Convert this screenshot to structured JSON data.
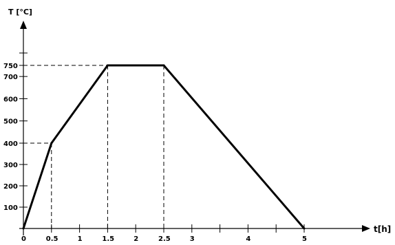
{
  "chart_data": {
    "type": "line",
    "title": "",
    "ylabel": "T [°C]",
    "xlabel": "t[h]",
    "xlim": [
      0,
      6.2
    ],
    "ylim": [
      0,
      800
    ],
    "grid": false,
    "x_ticks": [
      "0",
      "0.5",
      "1",
      "1.5",
      "2",
      "2.5",
      "3",
      "4",
      "5"
    ],
    "y_ticks": [
      "100",
      "200",
      "300",
      "400",
      "500",
      "600",
      "700",
      "750"
    ],
    "series": [
      {
        "name": "",
        "x": [
          0,
          0.5,
          1.5,
          2.5,
          5
        ],
        "y": [
          0,
          400,
          750,
          750,
          0
        ]
      }
    ],
    "reference_lines": [
      {
        "x": 0.5,
        "y": 400
      },
      {
        "x": 1.5,
        "y": 750
      },
      {
        "x": 2.5,
        "y": 750
      }
    ]
  }
}
